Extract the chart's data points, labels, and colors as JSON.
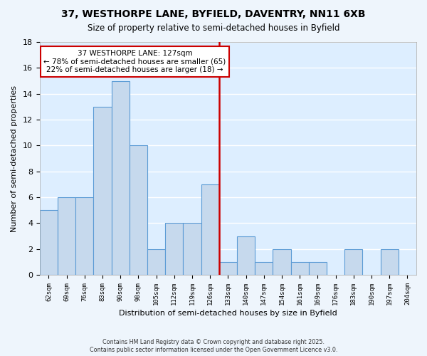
{
  "title": "37, WESTHORPE LANE, BYFIELD, DAVENTRY, NN11 6XB",
  "subtitle": "Size of property relative to semi-detached houses in Byfield",
  "xlabel": "Distribution of semi-detached houses by size in Byfield",
  "ylabel": "Number of semi-detached properties",
  "bar_labels": [
    "62sqm",
    "69sqm",
    "76sqm",
    "83sqm",
    "90sqm",
    "98sqm",
    "105sqm",
    "112sqm",
    "119sqm",
    "126sqm",
    "133sqm",
    "140sqm",
    "147sqm",
    "154sqm",
    "161sqm",
    "169sqm",
    "176sqm",
    "183sqm",
    "190sqm",
    "197sqm",
    "204sqm"
  ],
  "bar_values": [
    5,
    6,
    6,
    13,
    15,
    10,
    2,
    4,
    4,
    7,
    1,
    3,
    1,
    2,
    1,
    1,
    0,
    2,
    0,
    2,
    0
  ],
  "bar_color": "#c6d9ed",
  "bar_edge_color": "#5b9bd5",
  "background_color": "#ddeeff",
  "grid_color": "#ffffff",
  "vline_color": "#cc0000",
  "vline_x_index": 9.5,
  "ylim": [
    0,
    18
  ],
  "yticks": [
    0,
    2,
    4,
    6,
    8,
    10,
    12,
    14,
    16,
    18
  ],
  "annotation_title": "37 WESTHORPE LANE: 127sqm",
  "annotation_line1": "← 78% of semi-detached houses are smaller (65)",
  "annotation_line2": "22% of semi-detached houses are larger (18) →",
  "annotation_box_color": "#ffffff",
  "annotation_border_color": "#cc0000",
  "fig_bg_color": "#eef5fc",
  "footer1": "Contains HM Land Registry data © Crown copyright and database right 2025.",
  "footer2": "Contains public sector information licensed under the Open Government Licence v3.0."
}
